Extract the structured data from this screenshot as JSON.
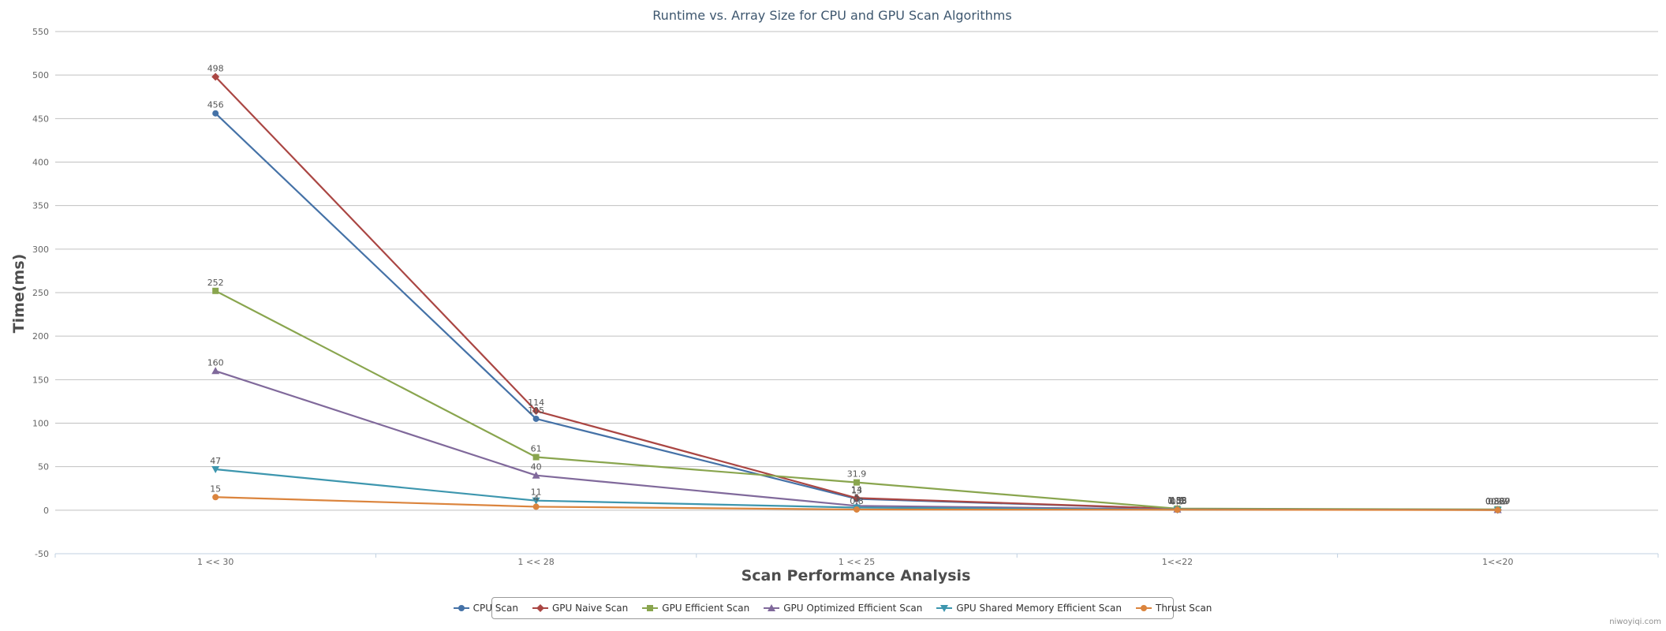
{
  "chart_data": {
    "type": "line",
    "title": "Runtime vs. Array Size for CPU and GPU Scan Algorithms",
    "xlabel": "Scan Performance Analysis",
    "ylabel": "Time(ms)",
    "categories": [
      "1 << 30",
      "1 << 28",
      "1 << 25",
      "1<<22",
      "1<<20"
    ],
    "ylim": [
      -50,
      550
    ],
    "yticks": [
      -50,
      0,
      50,
      100,
      150,
      200,
      250,
      300,
      350,
      400,
      450,
      500,
      550
    ],
    "grid": true,
    "legend_position": "bottom",
    "series": [
      {
        "name": "CPU Scan",
        "color": "#4572A7",
        "marker": "circle",
        "values": [
          456,
          105,
          13,
          1.58,
          0.337
        ],
        "labels": [
          "456",
          "105",
          "13",
          "1.58",
          "0.337"
        ]
      },
      {
        "name": "GPU Naive Scan",
        "color": "#AA4643",
        "marker": "diamond",
        "values": [
          498,
          114,
          14,
          1.6,
          0.33
        ],
        "labels": [
          "498",
          "114",
          "14",
          "1.6",
          "0.33"
        ]
      },
      {
        "name": "GPU Efficient Scan",
        "color": "#89A54E",
        "marker": "square",
        "values": [
          252,
          61,
          31.9,
          1.83,
          0.889
        ],
        "labels": [
          "252",
          "61",
          "31.9",
          "1.83",
          "0.889"
        ]
      },
      {
        "name": "GPU Optimized Efficient Scan",
        "color": "#80699B",
        "marker": "triangle",
        "values": [
          160,
          40,
          5,
          1.0,
          0.3
        ],
        "labels": [
          "160",
          "40",
          "5",
          "1.0",
          "0.3"
        ]
      },
      {
        "name": "GPU Shared Memory Efficient Scan",
        "color": "#3D96AE",
        "marker": "triangle-down",
        "values": [
          47,
          11,
          3,
          0.58,
          0.27
        ],
        "labels": [
          "47",
          "11",
          "3",
          "0.58",
          "0.27"
        ]
      },
      {
        "name": "Thrust Scan",
        "color": "#DB843D",
        "marker": "circle",
        "values": [
          15,
          4,
          0.8,
          0.5,
          0.2
        ],
        "labels": [
          "15",
          "4",
          "0.8",
          "0.5",
          "0.2"
        ]
      }
    ]
  },
  "credit": "niwoyiqi.com"
}
